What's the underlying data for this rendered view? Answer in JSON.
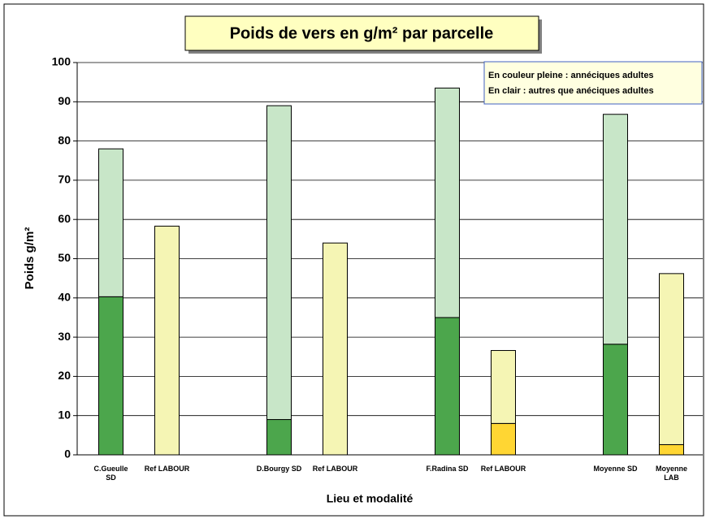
{
  "chart_data": {
    "type": "stacked_bar",
    "title": "Poids de vers en g/m² par parcelle",
    "xlabel": "Lieu et modalité",
    "ylabel": "Poids g/m²",
    "categories": [
      "C.Gueulle\nSD",
      "Ref LABOUR",
      null,
      "D.Bourgy SD",
      "Ref LABOUR",
      null,
      "F.Radina SD",
      "Ref LABOUR",
      null,
      "Moyenne SD",
      "Moyenne\nLAB"
    ],
    "series": [
      {
        "name": "En couleur pleine : annéciques adultes",
        "colors": [
          "#4ca64c",
          "#ffd633",
          null,
          "#4ca64c",
          "#ffd633",
          null,
          "#4ca64c",
          "#ffd633",
          null,
          "#4ca64c",
          "#ffd633"
        ],
        "values": [
          40.3,
          0,
          null,
          9,
          0,
          null,
          35,
          8,
          null,
          28.2,
          2.6
        ]
      },
      {
        "name": "En clair : autres que anéciques adultes",
        "colors": [
          "#c8e6c8",
          "#f5f5b4",
          null,
          "#c8e6c8",
          "#f5f5b4",
          null,
          "#c8e6c8",
          "#f5f5b4",
          null,
          "#c8e6c8",
          "#f5f5b4"
        ],
        "values": [
          37.7,
          58.3,
          null,
          80,
          54,
          null,
          58.5,
          18.6,
          null,
          58.6,
          43.6
        ]
      }
    ],
    "ylim": [
      0,
      100
    ],
    "yticks": [
      0,
      10,
      20,
      30,
      40,
      50,
      60,
      70,
      80,
      90,
      100
    ],
    "grid": true
  }
}
